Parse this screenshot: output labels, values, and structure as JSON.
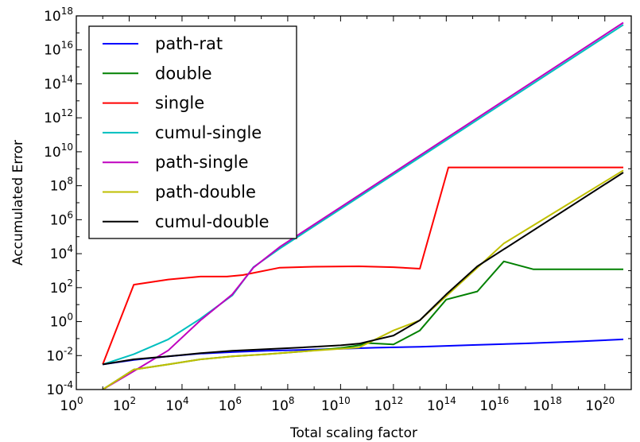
{
  "chart_data": {
    "type": "line",
    "title": "",
    "xlabel": "Total scaling factor",
    "ylabel": "Accumulated Error",
    "xscale": "log",
    "yscale": "log",
    "xlim": [
      1,
      1e+21
    ],
    "ylim": [
      0.0001,
      1e+18
    ],
    "x_ticks": [
      {
        "base": "10",
        "exp": "0",
        "value": 1
      },
      {
        "base": "10",
        "exp": "2",
        "value": 100.0
      },
      {
        "base": "10",
        "exp": "4",
        "value": 10000.0
      },
      {
        "base": "10",
        "exp": "6",
        "value": 1000000.0
      },
      {
        "base": "10",
        "exp": "8",
        "value": 100000000.0
      },
      {
        "base": "10",
        "exp": "10",
        "value": 10000000000.0
      },
      {
        "base": "10",
        "exp": "12",
        "value": 1000000000000.0
      },
      {
        "base": "10",
        "exp": "14",
        "value": 100000000000000.0
      },
      {
        "base": "10",
        "exp": "16",
        "value": 1e+16
      },
      {
        "base": "10",
        "exp": "18",
        "value": 1e+18
      },
      {
        "base": "10",
        "exp": "20",
        "value": 1e+20
      }
    ],
    "y_ticks": [
      {
        "base": "10",
        "exp": "-4",
        "value": 0.0001
      },
      {
        "base": "10",
        "exp": "-2",
        "value": 0.01
      },
      {
        "base": "10",
        "exp": "0",
        "value": 1
      },
      {
        "base": "10",
        "exp": "2",
        "value": 100.0
      },
      {
        "base": "10",
        "exp": "4",
        "value": 10000.0
      },
      {
        "base": "10",
        "exp": "6",
        "value": 1000000.0
      },
      {
        "base": "10",
        "exp": "8",
        "value": 100000000.0
      },
      {
        "base": "10",
        "exp": "10",
        "value": 10000000000.0
      },
      {
        "base": "10",
        "exp": "12",
        "value": 1000000000000.0
      },
      {
        "base": "10",
        "exp": "14",
        "value": 100000000000000.0
      },
      {
        "base": "10",
        "exp": "16",
        "value": 1e+16
      },
      {
        "base": "10",
        "exp": "18",
        "value": 1e+18
      }
    ],
    "grid": false,
    "legend_position": "top-left",
    "series": [
      {
        "name": "path-rat",
        "color": "#0000ff",
        "x": [
          10,
          150.0,
          3000.0,
          50000.0,
          800000.0,
          15000000.0,
          500000000.0,
          10000000000.0,
          200000000000.0,
          10000000000000.0,
          1000000000000000.0,
          1e+17,
          1e+19,
          5e+20
        ],
        "y": [
          0.003,
          0.0055,
          0.009,
          0.013,
          0.016,
          0.019,
          0.022,
          0.025,
          0.029,
          0.033,
          0.042,
          0.052,
          0.068,
          0.09
        ]
      },
      {
        "name": "double",
        "color": "#008000",
        "x": [
          10,
          150.0,
          3000.0,
          50000.0,
          800000.0,
          15000000.0,
          500000000.0,
          10000000000.0,
          50000000000.0,
          100000000000.0,
          1000000000000.0,
          10000000000000.0,
          100000000000000.0,
          1500000000000000.0,
          1.5e+16,
          2e+17,
          5e+20
        ],
        "y": [
          0.0001,
          0.0015,
          0.003,
          0.006,
          0.009,
          0.012,
          0.018,
          0.028,
          0.04,
          0.055,
          0.045,
          0.3,
          20,
          60,
          3500,
          1200,
          1200
        ]
      },
      {
        "name": "single",
        "color": "#ff0000",
        "x": [
          10,
          150.0,
          3000.0,
          50000.0,
          500000.0,
          2000000.0,
          50000000.0,
          1000000000.0,
          50000000000.0,
          1000000000000.0,
          10000000000000.0,
          120000000000000.0,
          5e+20
        ],
        "y": [
          0.003,
          150,
          300,
          450,
          450,
          550,
          1500,
          1700,
          1800,
          1600,
          1300,
          1200000000.0,
          1200000000.0
        ]
      },
      {
        "name": "cumul-single",
        "color": "#00bfbf",
        "x": [
          10,
          150.0,
          3000.0,
          50000.0,
          800000.0,
          5000000.0,
          50000000.0,
          5e+20
        ],
        "y": [
          0.003,
          0.012,
          0.09,
          1.5,
          35,
          1600,
          20000.0,
          3e+17
        ]
      },
      {
        "name": "path-single",
        "color": "#bf00bf",
        "x": [
          10,
          150.0,
          3000.0,
          50000.0,
          800000.0,
          5000000.0,
          50000000.0,
          5e+20
        ],
        "y": [
          0.0001,
          0.0012,
          0.02,
          1.2,
          40,
          1500,
          25000.0,
          4e+17
        ]
      },
      {
        "name": "path-double",
        "color": "#bfbf00",
        "x": [
          10,
          150.0,
          3000.0,
          50000.0,
          800000.0,
          15000000.0,
          500000000.0,
          10000000000.0,
          50000000000.0,
          1000000000000.0,
          10000000000000.0,
          1500000000000000.0,
          1.5e+16,
          5e+20
        ],
        "y": [
          0.0001,
          0.0015,
          0.003,
          0.006,
          0.009,
          0.012,
          0.018,
          0.025,
          0.03,
          0.3,
          1.2,
          1500,
          40000.0,
          800000000.0
        ]
      },
      {
        "name": "cumul-double",
        "color": "#000000",
        "x": [
          10,
          150.0,
          3000.0,
          50000.0,
          800000.0,
          15000000.0,
          500000000.0,
          10000000000.0,
          50000000000.0,
          1000000000000.0,
          10000000000000.0,
          100000000000000.0,
          1500000000000000.0,
          5e+20
        ],
        "y": [
          0.003,
          0.006,
          0.009,
          0.014,
          0.019,
          0.024,
          0.031,
          0.04,
          0.05,
          0.15,
          1.2,
          40,
          1800,
          600000000.0
        ]
      }
    ]
  }
}
